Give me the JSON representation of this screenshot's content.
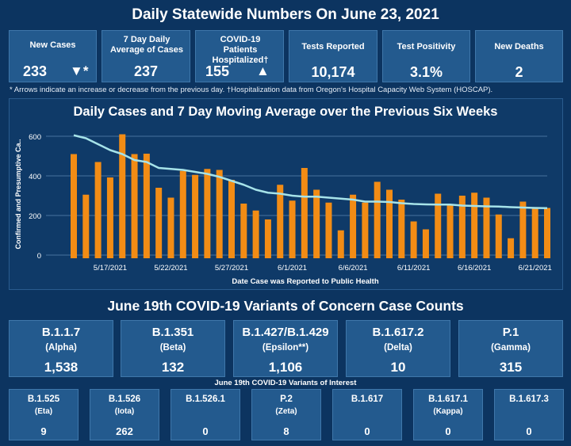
{
  "header": {
    "title": "Daily Statewide Numbers On June 23, 2021"
  },
  "kpis": [
    {
      "label": "New Cases",
      "value": "233",
      "marker": "▼*"
    },
    {
      "label": "7 Day Daily Average of Cases",
      "value": "237",
      "marker": ""
    },
    {
      "label": "COVID-19 Patients Hospitalized†",
      "value": "155",
      "marker": "▲"
    },
    {
      "label": "Tests Reported",
      "value": "10,174",
      "marker": ""
    },
    {
      "label": "Test Positivity",
      "value": "3.1%",
      "marker": ""
    },
    {
      "label": "New Deaths",
      "value": "2",
      "marker": ""
    }
  ],
  "footnote": "* Arrows indicate an increase or decrease from the previous day. †Hospitalization data from Oregon's Hospital Capacity Web System (HOSCAP).",
  "chart_section": {
    "title": "Daily Cases and 7 Day Moving Average over the Previous Six Weeks"
  },
  "chart_data": {
    "type": "bar",
    "title": "Daily Cases and 7 Day Moving Average over the Previous Six Weeks",
    "xlabel": "Date Case was Reported to Public Health",
    "ylabel": "Confirmed and Presumptive Ca..",
    "ylim": [
      0,
      650
    ],
    "yticks": [
      0,
      200,
      400,
      600
    ],
    "grid": true,
    "colors": {
      "bars": "#f28c15",
      "line": "#a6e3e9"
    },
    "x_tick_labels": [
      "5/17/2021",
      "5/22/2021",
      "5/27/2021",
      "6/1/2021",
      "6/6/2021",
      "6/11/2021",
      "6/16/2021",
      "6/21/2021"
    ],
    "x_tick_indices": [
      3,
      8,
      13,
      18,
      23,
      28,
      33,
      38
    ],
    "categories": [
      "5/14/2021",
      "5/15/2021",
      "5/16/2021",
      "5/17/2021",
      "5/18/2021",
      "5/19/2021",
      "5/20/2021",
      "5/21/2021",
      "5/22/2021",
      "5/23/2021",
      "5/24/2021",
      "5/25/2021",
      "5/26/2021",
      "5/27/2021",
      "5/28/2021",
      "5/29/2021",
      "5/30/2021",
      "5/31/2021",
      "6/1/2021",
      "6/2/2021",
      "6/3/2021",
      "6/4/2021",
      "6/5/2021",
      "6/6/2021",
      "6/7/2021",
      "6/8/2021",
      "6/9/2021",
      "6/10/2021",
      "6/11/2021",
      "6/12/2021",
      "6/13/2021",
      "6/14/2021",
      "6/15/2021",
      "6/16/2021",
      "6/17/2021",
      "6/18/2021",
      "6/19/2021",
      "6/20/2021",
      "6/21/2021",
      "6/22/2021"
    ],
    "series": [
      {
        "type": "bar",
        "values": [
          510,
          305,
          470,
          392,
          610,
          510,
          512,
          340,
          290,
          425,
          405,
          435,
          430,
          380,
          260,
          225,
          180,
          355,
          275,
          440,
          330,
          265,
          125,
          305,
          265,
          370,
          330,
          280,
          170,
          130,
          310,
          250,
          300,
          315,
          290,
          205,
          85,
          270,
          240,
          238
        ]
      },
      {
        "type": "line",
        "values": [
          605,
          590,
          560,
          530,
          510,
          480,
          470,
          440,
          435,
          430,
          420,
          410,
          395,
          375,
          355,
          330,
          315,
          310,
          300,
          295,
          295,
          290,
          285,
          280,
          270,
          270,
          268,
          262,
          258,
          256,
          255,
          255,
          250,
          248,
          246,
          245,
          242,
          240,
          238,
          237
        ]
      }
    ]
  },
  "variants_section": {
    "title": "June 19th  COVID-19 Variants of Concern Case Counts",
    "interest_title": "June 19th COVID-19 Variants of Interest"
  },
  "variants_concern": [
    {
      "name": "B.1.1.7",
      "alias": "(Alpha)",
      "count": "1,538"
    },
    {
      "name": "B.1.351",
      "alias": "(Beta)",
      "count": "132"
    },
    {
      "name": "B.1.427/B.1.429",
      "alias": "(Epsilon**)",
      "count": "1,106"
    },
    {
      "name": "B.1.617.2",
      "alias": "(Delta)",
      "count": "10"
    },
    {
      "name": "P.1",
      "alias": "(Gamma)",
      "count": "315"
    }
  ],
  "variants_interest": [
    {
      "name": "B.1.525",
      "alias": "(Eta)",
      "count": "9"
    },
    {
      "name": "B.1.526",
      "alias": "(Iota)",
      "count": "262"
    },
    {
      "name": "B.1.526.1",
      "alias": "",
      "count": "0"
    },
    {
      "name": "P.2",
      "alias": "(Zeta)",
      "count": "8"
    },
    {
      "name": "B.1.617",
      "alias": "",
      "count": "0"
    },
    {
      "name": "B.1.617.1",
      "alias": "(Kappa)",
      "count": "0"
    },
    {
      "name": "B.1.617.3",
      "alias": "",
      "count": "0"
    }
  ]
}
